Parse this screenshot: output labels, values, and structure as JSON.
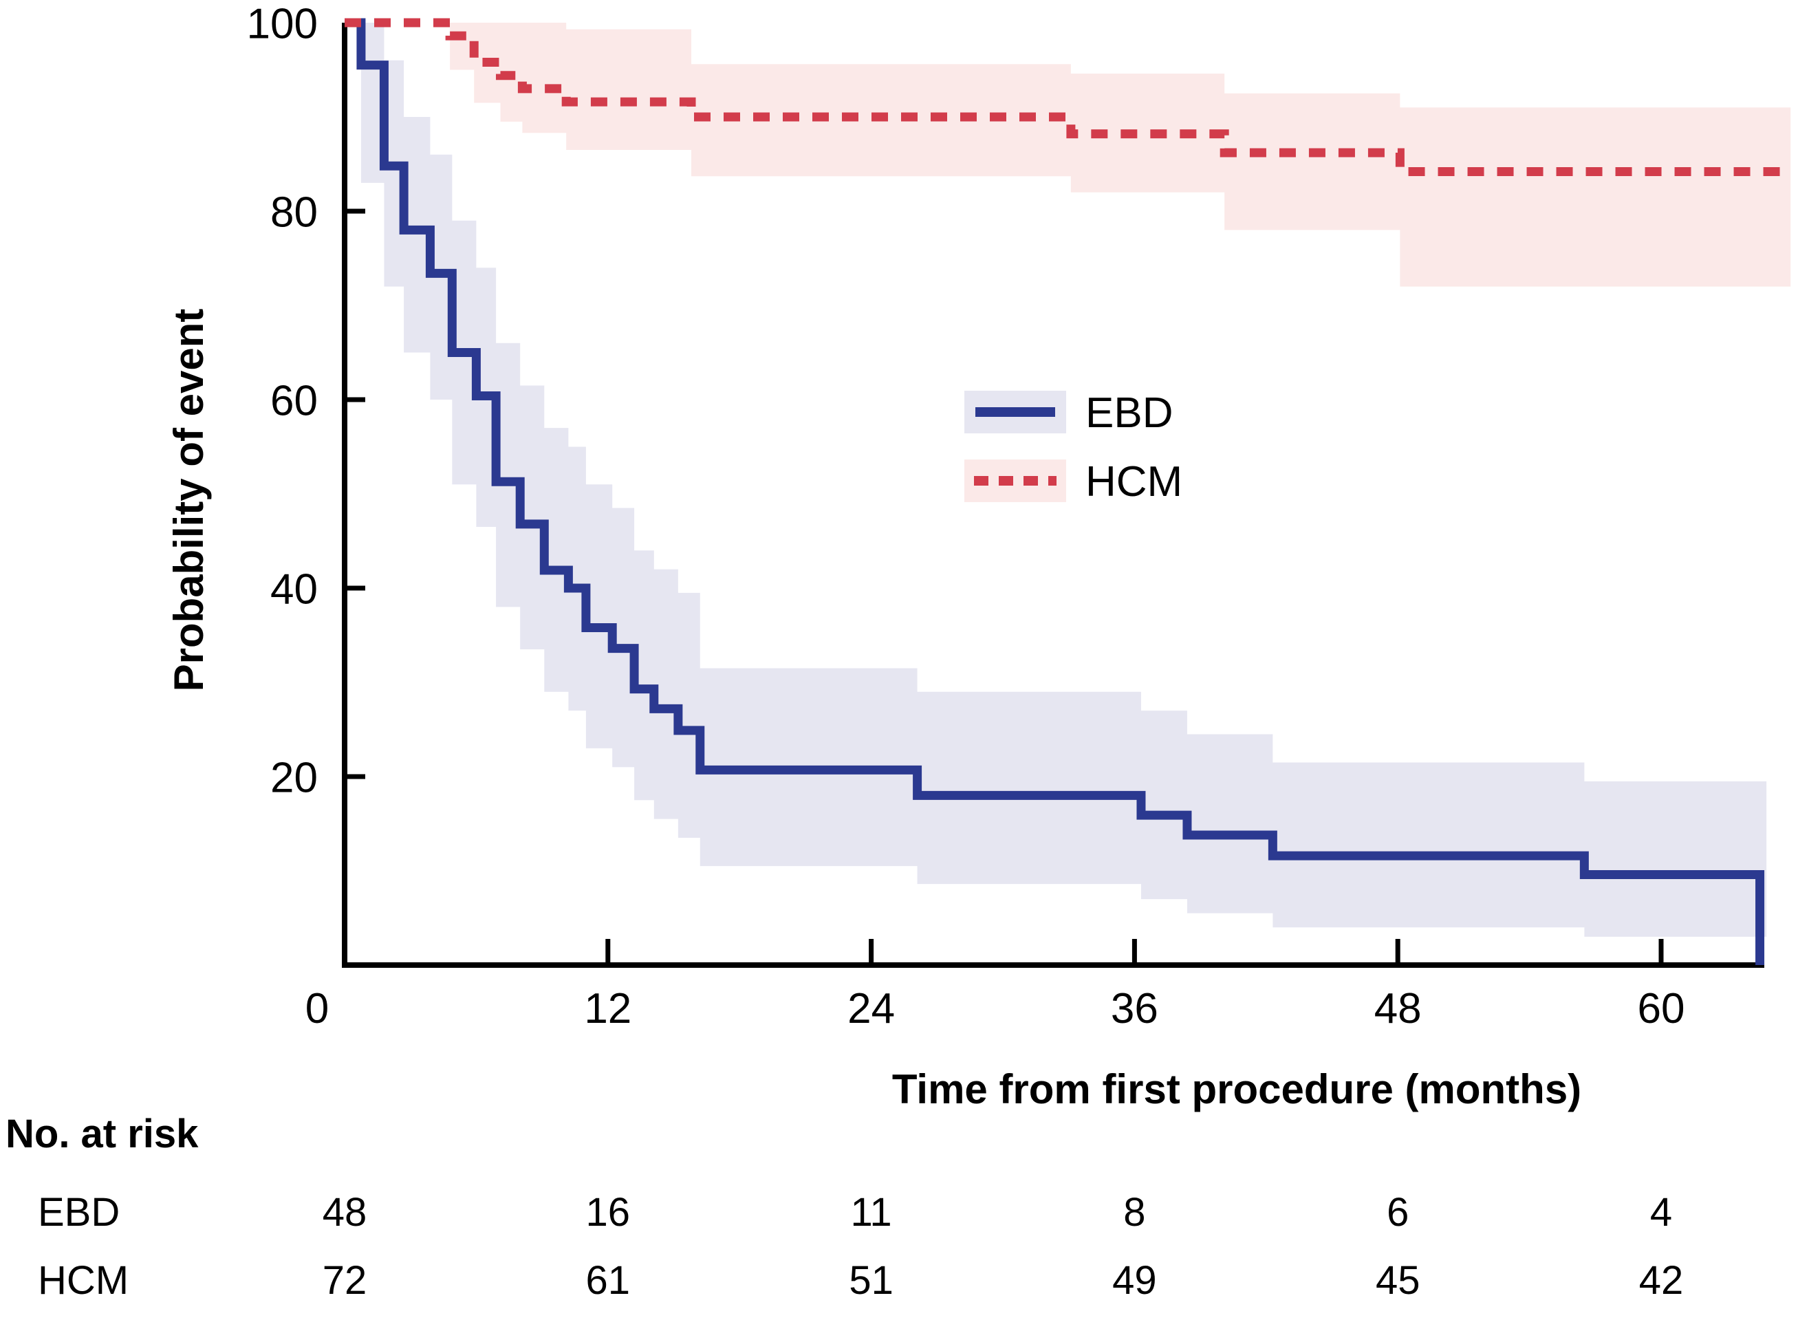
{
  "chart_data": {
    "type": "line",
    "subtype": "kaplan-meier-step",
    "title": "",
    "xlabel": "Time from first procedure (months)",
    "ylabel": "Probability of event",
    "xlim": [
      0,
      66
    ],
    "ylim": [
      0,
      100
    ],
    "xticks": [
      0,
      12,
      24,
      36,
      48,
      60
    ],
    "yticks": [
      100,
      80,
      60,
      40,
      20
    ],
    "grid": "off",
    "legend_position": "center-right-inside",
    "series": [
      {
        "name": "EBD",
        "line_style": "solid",
        "color": "#2b3990",
        "band_color": "#e6e6f1",
        "steps": [
          [
            0,
            100
          ],
          [
            0.75,
            95.5
          ],
          [
            1.8,
            84.8
          ],
          [
            2.7,
            78
          ],
          [
            3.9,
            73.4
          ],
          [
            4.9,
            65
          ],
          [
            6,
            60.4
          ],
          [
            6.9,
            51.3
          ],
          [
            8,
            46.8
          ],
          [
            9.1,
            41.9
          ],
          [
            10.2,
            40
          ],
          [
            11,
            35.8
          ],
          [
            12.2,
            33.6
          ],
          [
            13.2,
            29.3
          ],
          [
            14.1,
            27.2
          ],
          [
            15.2,
            24.9
          ],
          [
            16.2,
            20.7
          ],
          [
            26.1,
            18
          ],
          [
            36.3,
            15.9
          ],
          [
            38.4,
            13.8
          ],
          [
            42.3,
            11.6
          ],
          [
            56.5,
            9.6
          ],
          [
            64.5,
            0
          ]
        ],
        "end_time": 64.5,
        "band": [
          [
            0.75,
            100,
            83
          ],
          [
            1.8,
            96,
            72
          ],
          [
            2.7,
            90,
            65
          ],
          [
            3.9,
            86,
            60
          ],
          [
            4.9,
            79,
            51
          ],
          [
            6,
            74,
            46.5
          ],
          [
            6.9,
            66,
            38
          ],
          [
            8,
            61.5,
            33.5
          ],
          [
            9.1,
            57,
            29
          ],
          [
            10.2,
            55,
            27
          ],
          [
            11,
            51,
            23
          ],
          [
            12.2,
            48.5,
            21
          ],
          [
            13.2,
            44,
            17.5
          ],
          [
            14.1,
            42,
            15.5
          ],
          [
            15.2,
            39.5,
            13.5
          ],
          [
            16.2,
            31.5,
            10.5
          ],
          [
            26.1,
            29,
            8.6
          ],
          [
            36.3,
            27,
            7
          ],
          [
            38.4,
            24.5,
            5.5
          ],
          [
            42.3,
            21.5,
            4
          ],
          [
            56.5,
            19.5,
            3
          ]
        ],
        "band_end_time": 64.8
      },
      {
        "name": "HCM",
        "line_style": "dashed",
        "color": "#d23c4b",
        "band_color": "#fbe9e8",
        "steps": [
          [
            0,
            100
          ],
          [
            4.8,
            98.6
          ],
          [
            5.9,
            95.8
          ],
          [
            7.1,
            94.4
          ],
          [
            8.1,
            93
          ],
          [
            10.1,
            91.6
          ],
          [
            15.8,
            90
          ],
          [
            33.1,
            88.2
          ],
          [
            40.1,
            86.2
          ],
          [
            48.1,
            84.2
          ]
        ],
        "end_time": 65.9,
        "band": [
          [
            4.8,
            100,
            95
          ],
          [
            5.9,
            100,
            91.5
          ],
          [
            7.1,
            100,
            89.5
          ],
          [
            8.1,
            100,
            88.3
          ],
          [
            10.1,
            99.3,
            86.5
          ],
          [
            15.8,
            95.6,
            83.7
          ],
          [
            33.1,
            94.6,
            82
          ],
          [
            40.1,
            92.5,
            78
          ],
          [
            48.1,
            91,
            72
          ]
        ],
        "band_end_time": 65.9
      }
    ],
    "legend": {
      "items": [
        {
          "label": "EBD"
        },
        {
          "label": "HCM"
        }
      ]
    },
    "risk_table": {
      "header": "No. at risk",
      "time_points": [
        0,
        12,
        24,
        36,
        48,
        60
      ],
      "rows": [
        {
          "label": "EBD",
          "values": [
            "48",
            "16",
            "11",
            "8",
            "6",
            "4"
          ]
        },
        {
          "label": "HCM",
          "values": [
            "72",
            "61",
            "51",
            "49",
            "45",
            "42"
          ]
        }
      ]
    }
  }
}
